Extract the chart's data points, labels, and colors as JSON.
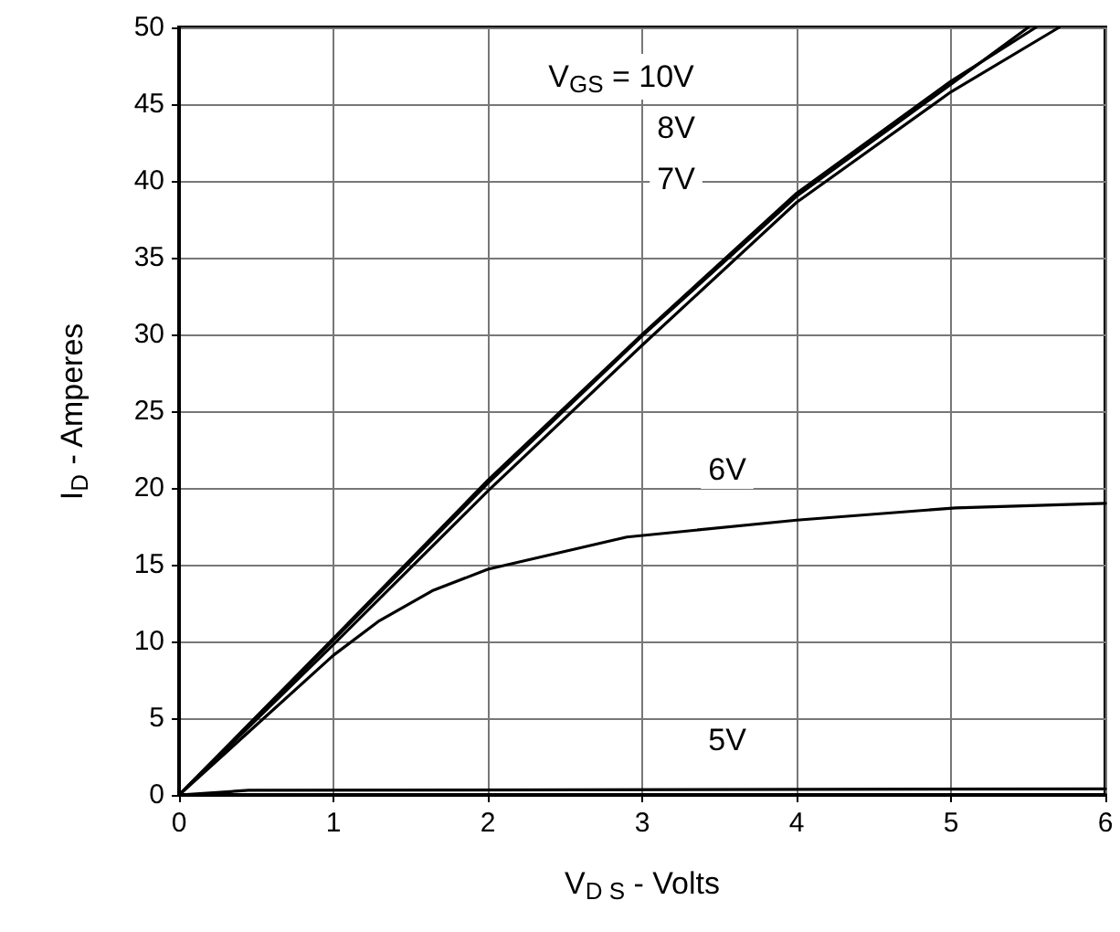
{
  "chart_data": {
    "type": "line",
    "xlabel": "V$_{D S}$ - Volts",
    "ylabel": "I$_{D}$ - Amperes",
    "xlim": [
      0,
      6
    ],
    "xticks": [
      0,
      1,
      2,
      3,
      4,
      5,
      6
    ],
    "ylim": [
      0,
      50
    ],
    "yticks": [
      0,
      5,
      10,
      15,
      20,
      25,
      30,
      35,
      40,
      45,
      50
    ],
    "grid": true,
    "marker": "none",
    "line_style": "solid",
    "series": [
      {
        "color": "#000000",
        "x": [
          0,
          1,
          2,
          3,
          4,
          5,
          5.55
        ],
        "values": [
          0,
          10.2,
          20.5,
          30,
          39.2,
          46.5,
          50
        ]
      },
      {
        "color": "#000000",
        "x": [
          0,
          1,
          2,
          3,
          4,
          5,
          5.5
        ],
        "values": [
          0,
          10.1,
          20.3,
          29.9,
          39,
          46.3,
          50
        ]
      },
      {
        "color": "#000000",
        "x": [
          0,
          1,
          2,
          3,
          4,
          5,
          5.7
        ],
        "values": [
          0,
          9.8,
          19.8,
          29.3,
          38.6,
          45.8,
          50
        ]
      },
      {
        "color": "#000000",
        "x": [
          0,
          1,
          1.29,
          1.64,
          2,
          2.9,
          4,
          5.03,
          6
        ],
        "values": [
          0,
          9.1,
          11.3,
          13.3,
          14.7,
          16.8,
          17.9,
          18.7,
          19
        ]
      },
      {
        "color": "#000000",
        "x": [
          0,
          0.45,
          6
        ],
        "values": [
          0,
          0.3,
          0.4
        ]
      }
    ],
    "annotations": [
      "V$_{GS}$ = 10V",
      "8V",
      "7V",
      "6V",
      "5V"
    ]
  }
}
